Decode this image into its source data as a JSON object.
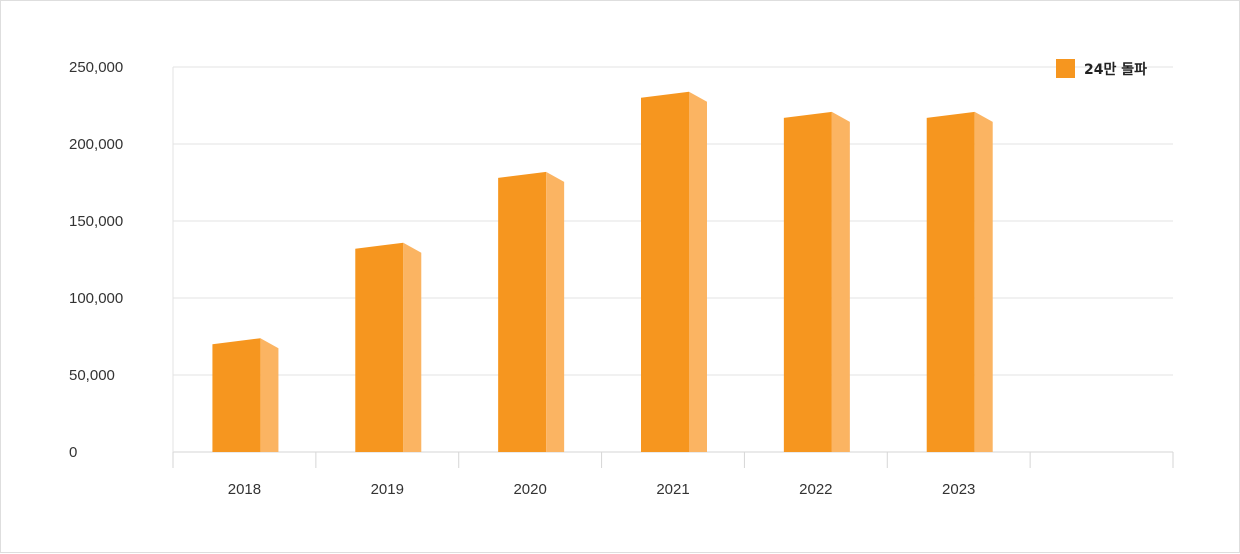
{
  "chart_data": {
    "type": "bar",
    "categories": [
      "2018",
      "2019",
      "2020",
      "2021",
      "2022",
      "2023"
    ],
    "series": [
      {
        "name": "24만 돌파",
        "values": [
          70000,
          132000,
          178000,
          230000,
          217000,
          217000
        ]
      }
    ],
    "y_ticks": [
      "0",
      "50,000",
      "100,000",
      "150,000",
      "200,000",
      "250,000"
    ],
    "ylim": [
      0,
      250000
    ],
    "grid": true,
    "legend_position": "top-right",
    "colors": {
      "bar_front": "#f6961f",
      "bar_side": "#fbb462",
      "grid": "#e3e3e3",
      "axis": "#d6d6d6"
    }
  }
}
